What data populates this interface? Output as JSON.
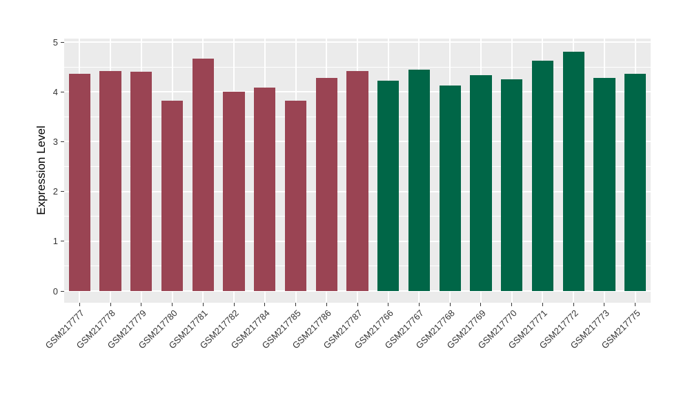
{
  "chart_data": {
    "type": "bar",
    "title": "",
    "xlabel": "",
    "ylabel": "Expression Level",
    "ylim": [
      0,
      5
    ],
    "yticks": [
      0,
      1,
      2,
      3,
      4,
      5
    ],
    "grid": true,
    "legend_position": "none",
    "panel_background": "#EBEBEB",
    "grid_color": "#FFFFFF",
    "axis_text_color": "#333333",
    "categories": [
      "GSM217777",
      "GSM217778",
      "GSM217779",
      "GSM217780",
      "GSM217781",
      "GSM217782",
      "GSM217784",
      "GSM217785",
      "GSM217786",
      "GSM217787",
      "GSM217766",
      "GSM217767",
      "GSM217768",
      "GSM217769",
      "GSM217770",
      "GSM217771",
      "GSM217772",
      "GSM217773",
      "GSM217775"
    ],
    "series": [
      {
        "name": "maroon-group",
        "color": "#9A4453",
        "categories": [
          "GSM217777",
          "GSM217778",
          "GSM217779",
          "GSM217780",
          "GSM217781",
          "GSM217782",
          "GSM217784",
          "GSM217785",
          "GSM217786",
          "GSM217787"
        ],
        "values": [
          4.36,
          4.42,
          4.4,
          3.82,
          4.67,
          4.0,
          4.09,
          3.82,
          4.28,
          4.42
        ]
      },
      {
        "name": "green-group",
        "color": "#006647",
        "categories": [
          "GSM217766",
          "GSM217767",
          "GSM217768",
          "GSM217769",
          "GSM217770",
          "GSM217771",
          "GSM217772",
          "GSM217773",
          "GSM217775"
        ],
        "values": [
          4.22,
          4.45,
          4.13,
          4.33,
          4.25,
          4.62,
          4.81,
          4.28,
          4.36
        ]
      }
    ]
  }
}
